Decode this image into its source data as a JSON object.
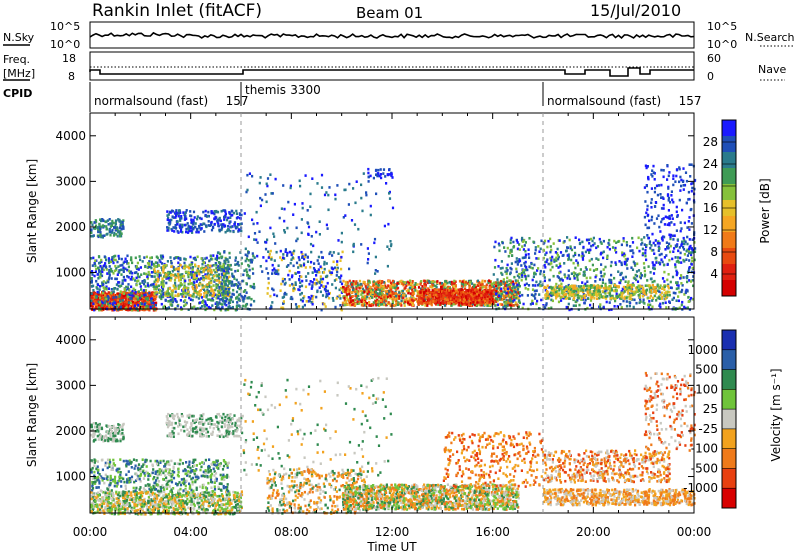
{
  "header": {
    "site": "Rankin Inlet (fitACF)",
    "beam": "Beam 01",
    "date": "15/Jul/2010"
  },
  "noise_panel": {
    "left_label": "N.Sky",
    "right_label": "N.Search",
    "y_ticks": [
      "10^5",
      "10^0"
    ]
  },
  "freq_panel": {
    "left_label_1": "Freq.",
    "left_label_2": "[MHz]",
    "right_label": "Nave",
    "left_ticks": [
      "18",
      "8"
    ],
    "right_ticks": [
      "60",
      "0"
    ]
  },
  "cpid_panel": {
    "label": "CPID",
    "segments": [
      {
        "name": "normalsound (fast)",
        "id": "157",
        "start_h": 0
      },
      {
        "name": "themis",
        "id": "3300",
        "start_h": 6
      },
      {
        "name": "normalsound (fast)",
        "id": "157",
        "start_h": 18
      }
    ]
  },
  "chart_data": [
    {
      "type": "heatmap",
      "panel": "power",
      "ylabel": "Slant Range [km]",
      "xlabel": "Time UT",
      "x_ticks": [
        "00:00",
        "04:00",
        "08:00",
        "12:00",
        "16:00",
        "20:00",
        "00:00"
      ],
      "x_tick_hours": [
        0,
        4,
        8,
        12,
        16,
        20,
        24
      ],
      "y_ticks": [
        1000,
        2000,
        3000,
        4000
      ],
      "ylim": [
        200,
        4500
      ],
      "xlim": [
        0,
        24
      ],
      "colorbar": {
        "label": "Power [dB]",
        "ticks": [
          "4",
          "8",
          "12",
          "16",
          "20",
          "24",
          "28"
        ],
        "colors": [
          "#1a1aff",
          "#1f4fb8",
          "#2a7b8c",
          "#3f9b55",
          "#86c13b",
          "#e6c02a",
          "#f5a623",
          "#f07a18",
          "#e84a10",
          "#e02010",
          "#d40000"
        ]
      }
    },
    {
      "type": "heatmap",
      "panel": "velocity",
      "ylabel": "Slant Range [km]",
      "xlabel": "Time UT",
      "x_ticks": [
        "00:00",
        "04:00",
        "08:00",
        "12:00",
        "16:00",
        "20:00",
        "00:00"
      ],
      "x_tick_hours": [
        0,
        4,
        8,
        12,
        16,
        20,
        24
      ],
      "y_ticks": [
        1000,
        2000,
        3000,
        4000
      ],
      "ylim": [
        200,
        4500
      ],
      "xlim": [
        0,
        24
      ],
      "colorbar": {
        "label": "Velocity [m s⁻¹]",
        "ticks": [
          "1000",
          "500",
          "100",
          "25",
          "-25",
          "-100",
          "-500",
          "-1000"
        ],
        "colors": [
          "#1a2fb0",
          "#2a5fa8",
          "#2f8a4f",
          "#6fc43a",
          "#c8c8c0",
          "#f2a21e",
          "#ef7a1a",
          "#e84010",
          "#d80000"
        ]
      }
    }
  ]
}
